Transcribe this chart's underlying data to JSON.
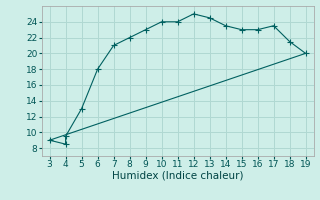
{
  "xlabel": "Humidex (Indice chaleur)",
  "ylabel": "",
  "background_color": "#ceeee8",
  "line_color": "#006060",
  "grid_color": "#b0d8d2",
  "curve_x": [
    3,
    4,
    4,
    5,
    6,
    7,
    8,
    9,
    10,
    11,
    12,
    13,
    14,
    15,
    16,
    17,
    18,
    19
  ],
  "curve_y": [
    9.0,
    8.5,
    9.5,
    13.0,
    18.0,
    21.0,
    22.0,
    23.0,
    24.0,
    24.0,
    25.0,
    24.5,
    23.5,
    23.0,
    23.0,
    23.5,
    21.5,
    20.0
  ],
  "line2_x": [
    3,
    19
  ],
  "line2_y": [
    9.0,
    20.0
  ],
  "xlim": [
    2.5,
    19.5
  ],
  "ylim": [
    7,
    26
  ],
  "xticks": [
    3,
    4,
    5,
    6,
    7,
    8,
    9,
    10,
    11,
    12,
    13,
    14,
    15,
    16,
    17,
    18,
    19
  ],
  "yticks": [
    8,
    10,
    12,
    14,
    16,
    18,
    20,
    22,
    24
  ],
  "tick_fontsize": 6.5,
  "label_fontsize": 7.5
}
